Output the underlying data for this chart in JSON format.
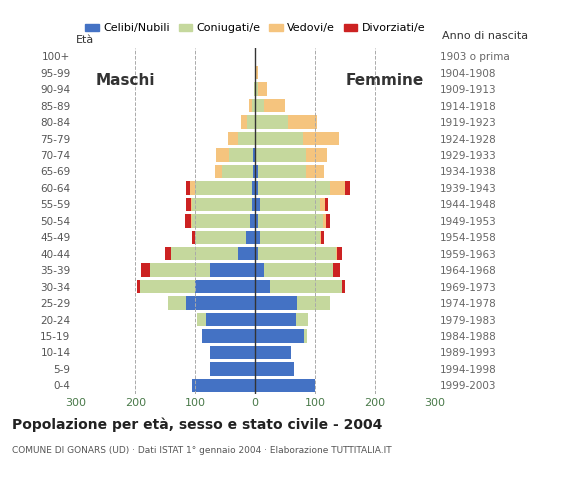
{
  "age_groups": [
    "0-4",
    "5-9",
    "10-14",
    "15-19",
    "20-24",
    "25-29",
    "30-34",
    "35-39",
    "40-44",
    "45-49",
    "50-54",
    "55-59",
    "60-64",
    "65-69",
    "70-74",
    "75-79",
    "80-84",
    "85-89",
    "90-94",
    "95-99",
    "100+"
  ],
  "birth_years": [
    "1999-2003",
    "1994-1998",
    "1989-1993",
    "1984-1988",
    "1979-1983",
    "1974-1978",
    "1969-1973",
    "1964-1968",
    "1959-1963",
    "1954-1958",
    "1949-1953",
    "1944-1948",
    "1939-1943",
    "1934-1938",
    "1929-1933",
    "1924-1928",
    "1919-1923",
    "1914-1918",
    "1909-1913",
    "1904-1908",
    "1903 o prima"
  ],
  "male": {
    "celibe": [
      105,
      76,
      75,
      88,
      82,
      115,
      100,
      75,
      28,
      15,
      8,
      5,
      5,
      3,
      3,
      0,
      0,
      0,
      0,
      0,
      0
    ],
    "coniugato": [
      0,
      0,
      0,
      0,
      15,
      30,
      92,
      100,
      112,
      85,
      97,
      100,
      95,
      52,
      40,
      28,
      14,
      5,
      2,
      0,
      0
    ],
    "vedovo": [
      0,
      0,
      0,
      0,
      0,
      0,
      0,
      0,
      0,
      0,
      2,
      2,
      8,
      12,
      22,
      18,
      10,
      5,
      0,
      0,
      0
    ],
    "divorziato": [
      0,
      0,
      0,
      0,
      0,
      0,
      5,
      15,
      10,
      5,
      10,
      8,
      7,
      0,
      0,
      0,
      0,
      0,
      0,
      0,
      0
    ]
  },
  "female": {
    "nubile": [
      100,
      65,
      60,
      82,
      68,
      70,
      25,
      15,
      5,
      8,
      5,
      8,
      5,
      5,
      0,
      0,
      0,
      0,
      0,
      0,
      0
    ],
    "coniugata": [
      0,
      0,
      0,
      5,
      20,
      55,
      120,
      115,
      130,
      100,
      108,
      100,
      120,
      80,
      85,
      80,
      55,
      15,
      5,
      2,
      0
    ],
    "vedova": [
      0,
      0,
      0,
      0,
      0,
      0,
      0,
      0,
      2,
      2,
      5,
      8,
      25,
      30,
      35,
      60,
      48,
      35,
      15,
      3,
      0
    ],
    "divorziata": [
      0,
      0,
      0,
      0,
      0,
      0,
      5,
      12,
      8,
      5,
      7,
      5,
      8,
      0,
      0,
      0,
      0,
      0,
      0,
      0,
      0
    ]
  },
  "colors": {
    "celibe": "#4472c4",
    "coniugato": "#c5d89d",
    "vedovo": "#f5c47e",
    "divorziato": "#cc2222"
  },
  "legend_labels": [
    "Celibi/Nubili",
    "Coniugati/e",
    "Vedovi/e",
    "Divorziati/e"
  ],
  "title": "Popolazione per età, sesso e stato civile - 2004",
  "subtitle": "COMUNE DI GONARS (UD) · Dati ISTAT 1° gennaio 2004 · Elaborazione TUTTITALIA.IT",
  "xlabel_left": "Maschi",
  "xlabel_right": "Femmine",
  "ylabel_left": "Età",
  "ylabel_right": "Anno di nascita",
  "xlim": 300,
  "background_color": "#ffffff",
  "bar_height": 0.82
}
